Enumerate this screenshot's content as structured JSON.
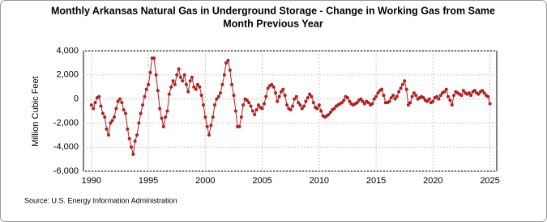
{
  "chart_data": {
    "type": "line",
    "title": [
      "Monthly Arkansas Natural Gas in Underground Storage - Change in Working Gas from Same",
      "Month Previous Year"
    ],
    "ylabel": "Million Cubic Feet",
    "source": "Source: U.S. Energy Information Administration",
    "xlim": [
      1989.3,
      2025.6
    ],
    "xticks": [
      1990,
      1995,
      2000,
      2005,
      2010,
      2015,
      2020,
      2025
    ],
    "ylim": [
      -6000,
      4000
    ],
    "yticks": [
      {
        "value": -6000,
        "label": "-6,000"
      },
      {
        "value": -4000,
        "label": "-4,000"
      },
      {
        "value": -2000,
        "label": "-2,000"
      },
      0,
      {
        "value": 2000,
        "label": "2,000"
      },
      {
        "value": 4000,
        "label": "4,000"
      }
    ],
    "grid": true,
    "series": [
      {
        "color": "#b11f1f",
        "x": [
          1990,
          1990.17,
          1990.33,
          1990.5,
          1990.67,
          1990.83,
          1991,
          1991.17,
          1991.33,
          1991.5,
          1991.67,
          1991.83,
          1992,
          1992.17,
          1992.33,
          1992.5,
          1992.67,
          1992.83,
          1993,
          1993.17,
          1993.33,
          1993.5,
          1993.67,
          1993.83,
          1994,
          1994.17,
          1994.33,
          1994.5,
          1994.67,
          1994.83,
          1995,
          1995.17,
          1995.33,
          1995.5,
          1995.67,
          1995.83,
          1996,
          1996.17,
          1996.33,
          1996.5,
          1996.67,
          1996.83,
          1997,
          1997.17,
          1997.33,
          1997.5,
          1997.67,
          1997.83,
          1998,
          1998.17,
          1998.33,
          1998.5,
          1998.67,
          1998.83,
          1999,
          1999.17,
          1999.33,
          1999.5,
          1999.67,
          1999.83,
          2000,
          2000.17,
          2000.33,
          2000.5,
          2000.67,
          2000.83,
          2001,
          2001.17,
          2001.33,
          2001.5,
          2001.67,
          2001.83,
          2002,
          2002.17,
          2002.33,
          2002.5,
          2002.67,
          2002.83,
          2003,
          2003.17,
          2003.33,
          2003.5,
          2003.67,
          2003.83,
          2004,
          2004.17,
          2004.33,
          2004.5,
          2004.67,
          2004.83,
          2005,
          2005.17,
          2005.33,
          2005.5,
          2005.67,
          2005.83,
          2006,
          2006.17,
          2006.33,
          2006.5,
          2006.67,
          2006.83,
          2007,
          2007.17,
          2007.33,
          2007.5,
          2007.67,
          2007.83,
          2008,
          2008.17,
          2008.33,
          2008.5,
          2008.67,
          2008.83,
          2009,
          2009.17,
          2009.33,
          2009.5,
          2009.67,
          2009.83,
          2010,
          2010.17,
          2010.33,
          2010.5,
          2010.67,
          2010.83,
          2011,
          2011.17,
          2011.33,
          2011.5,
          2011.67,
          2011.83,
          2012,
          2012.17,
          2012.33,
          2012.5,
          2012.67,
          2012.83,
          2013,
          2013.17,
          2013.33,
          2013.5,
          2013.67,
          2013.83,
          2014,
          2014.17,
          2014.33,
          2014.5,
          2014.67,
          2014.83,
          2015,
          2015.17,
          2015.33,
          2015.5,
          2015.67,
          2015.83,
          2016,
          2016.17,
          2016.33,
          2016.5,
          2016.67,
          2016.83,
          2017,
          2017.17,
          2017.33,
          2017.5,
          2017.67,
          2017.83,
          2018,
          2018.17,
          2018.33,
          2018.5,
          2018.67,
          2018.83,
          2019,
          2019.17,
          2019.33,
          2019.5,
          2019.67,
          2019.83,
          2020,
          2020.17,
          2020.33,
          2020.5,
          2020.67,
          2020.83,
          2021,
          2021.17,
          2021.33,
          2021.5,
          2021.67,
          2021.83,
          2022,
          2022.17,
          2022.33,
          2022.5,
          2022.67,
          2022.83,
          2023,
          2023.17,
          2023.33,
          2023.5,
          2023.67,
          2023.83,
          2024,
          2024.17,
          2024.33,
          2024.5,
          2024.67,
          2024.83,
          2025
        ],
        "values": [
          -500,
          -800,
          -300,
          100,
          200,
          -600,
          -1200,
          -1500,
          -2500,
          -3000,
          -2000,
          -1800,
          -1500,
          -800,
          -200,
          0,
          -300,
          -900,
          -1200,
          -2500,
          -3300,
          -4000,
          -4600,
          -3500,
          -3000,
          -2000,
          -1200,
          -500,
          200,
          800,
          1200,
          2200,
          3400,
          3400,
          2000,
          700,
          -800,
          -1600,
          -2300,
          -1500,
          -1000,
          400,
          1000,
          1500,
          1200,
          2000,
          2500,
          1800,
          1500,
          2000,
          1200,
          600,
          1500,
          1800,
          1000,
          800,
          1200,
          1000,
          300,
          -500,
          -1500,
          -2300,
          -3000,
          -2200,
          -1500,
          -500,
          0,
          200,
          500,
          1200,
          2000,
          3000,
          3200,
          2400,
          1200,
          300,
          -1000,
          -2300,
          -2300,
          -1500,
          -500,
          0,
          -100,
          -300,
          -600,
          -1000,
          -1300,
          -900,
          -500,
          -700,
          -800,
          -400,
          200,
          900,
          1100,
          1200,
          1000,
          500,
          -200,
          200,
          600,
          800,
          300,
          -500,
          -800,
          -900,
          -600,
          0,
          200,
          -300,
          -500,
          -800,
          -600,
          -200,
          100,
          400,
          200,
          -300,
          -700,
          -800,
          -500,
          -1000,
          -1400,
          -1500,
          -1400,
          -1300,
          -1100,
          -900,
          -800,
          -600,
          -500,
          -400,
          -300,
          -100,
          200,
          100,
          -200,
          -400,
          -500,
          -400,
          -300,
          -100,
          0,
          -200,
          -400,
          -200,
          -300,
          -500,
          -400,
          0,
          200,
          500,
          700,
          800,
          300,
          -300,
          -300,
          -200,
          100,
          300,
          0,
          200,
          600,
          900,
          1200,
          1500,
          800,
          -500,
          -300,
          200,
          500,
          300,
          0,
          100,
          200,
          100,
          -100,
          -200,
          0,
          -300,
          -200,
          100,
          200,
          0,
          300,
          500,
          600,
          800,
          200,
          -100,
          -500,
          300,
          600,
          500,
          400,
          300,
          700,
          500,
          400,
          500,
          300,
          600,
          700,
          500,
          400,
          600,
          700,
          500,
          300,
          200,
          -400
        ]
      }
    ]
  }
}
